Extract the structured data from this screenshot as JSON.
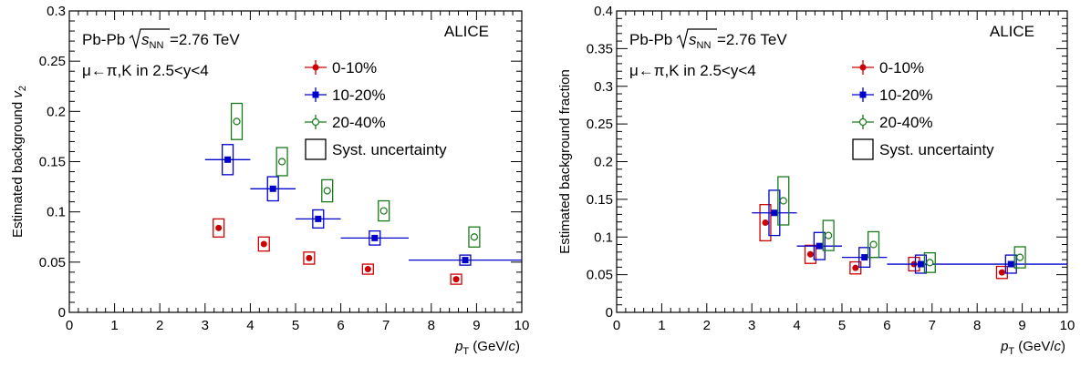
{
  "chart_data": [
    {
      "type": "scatter",
      "ylabel": "Estimated background v₂",
      "xlabel": "p_T (GeV/c)",
      "xlim": [
        0,
        10
      ],
      "ylim": [
        0,
        0.3
      ],
      "xticks": [
        "0",
        "1",
        "2",
        "3",
        "4",
        "5",
        "6",
        "7",
        "8",
        "9",
        "10"
      ],
      "yticks": [
        "0",
        "0.05",
        "0.1",
        "0.15",
        "0.2",
        "0.25",
        "0.3"
      ],
      "annotations": {
        "system": "Pb-Pb",
        "energy": "=2.76 TeV",
        "process": "μ←π,K in 2.5<y<4",
        "collab": "ALICE"
      },
      "legend_position": "top-right",
      "series": [
        {
          "name": "0-10%",
          "color": "#cc0000",
          "marker": "filled-circle",
          "x": [
            3.3,
            4.3,
            5.3,
            6.6,
            8.55
          ],
          "y": [
            0.084,
            0.068,
            0.054,
            0.043,
            0.033
          ],
          "xerr": [
            0,
            0,
            0,
            0,
            0
          ],
          "sys_half_height": [
            0.009,
            0.007,
            0.006,
            0.005,
            0.005
          ]
        },
        {
          "name": "10-20%",
          "color": "#0000cc",
          "marker": "filled-square",
          "x": [
            3.5,
            4.5,
            5.5,
            6.75,
            8.75
          ],
          "y": [
            0.152,
            0.123,
            0.093,
            0.074,
            0.052
          ],
          "xerr": [
            0.5,
            0.5,
            0.5,
            0.75,
            1.25
          ],
          "sys_half_height": [
            0.015,
            0.012,
            0.009,
            0.007,
            0.005
          ]
        },
        {
          "name": "20-40%",
          "color": "#1a7a1a",
          "marker": "open-circle",
          "x": [
            3.7,
            4.7,
            5.7,
            6.95,
            8.95
          ],
          "y": [
            0.19,
            0.15,
            0.121,
            0.101,
            0.075
          ],
          "xerr": [
            0,
            0,
            0,
            0,
            0
          ],
          "sys_half_height": [
            0.018,
            0.014,
            0.011,
            0.01,
            0.01
          ]
        }
      ],
      "legend_syst_label": "Syst. uncertainty"
    },
    {
      "type": "scatter",
      "ylabel": "Estimated background fraction",
      "xlabel": "p_T (GeV/c)",
      "xlim": [
        0,
        10
      ],
      "ylim": [
        0,
        0.4
      ],
      "xticks": [
        "0",
        "1",
        "2",
        "3",
        "4",
        "5",
        "6",
        "7",
        "8",
        "9",
        "10"
      ],
      "yticks": [
        "0",
        "0.05",
        "0.1",
        "0.15",
        "0.2",
        "0.25",
        "0.3",
        "0.35",
        "0.4"
      ],
      "annotations": {
        "system": "Pb-Pb",
        "energy": "=2.76 TeV",
        "process": "μ←π,K in 2.5<y<4",
        "collab": "ALICE"
      },
      "legend_position": "top-right",
      "series": [
        {
          "name": "0-10%",
          "color": "#cc0000",
          "marker": "filled-circle",
          "x": [
            3.3,
            4.3,
            5.3,
            6.6,
            8.55
          ],
          "y": [
            0.119,
            0.077,
            0.059,
            0.064,
            0.053
          ],
          "xerr": [
            0,
            0,
            0,
            0,
            0
          ],
          "sys_half_height": [
            0.024,
            0.012,
            0.008,
            0.009,
            0.008
          ]
        },
        {
          "name": "10-20%",
          "color": "#0000cc",
          "marker": "filled-square",
          "x": [
            3.5,
            4.5,
            5.5,
            6.75,
            8.75
          ],
          "y": [
            0.132,
            0.088,
            0.073,
            0.064,
            0.064
          ],
          "xerr": [
            0.5,
            0.5,
            0.5,
            0.75,
            1.25
          ],
          "sys_half_height": [
            0.03,
            0.018,
            0.013,
            0.012,
            0.012
          ]
        },
        {
          "name": "20-40%",
          "color": "#1a7a1a",
          "marker": "open-circle",
          "x": [
            3.7,
            4.7,
            5.7,
            6.95,
            8.95
          ],
          "y": [
            0.148,
            0.102,
            0.09,
            0.066,
            0.073
          ],
          "xerr": [
            0,
            0,
            0,
            0,
            0
          ],
          "sys_half_height": [
            0.032,
            0.02,
            0.017,
            0.013,
            0.014
          ]
        }
      ],
      "legend_syst_label": "Syst. uncertainty"
    }
  ]
}
